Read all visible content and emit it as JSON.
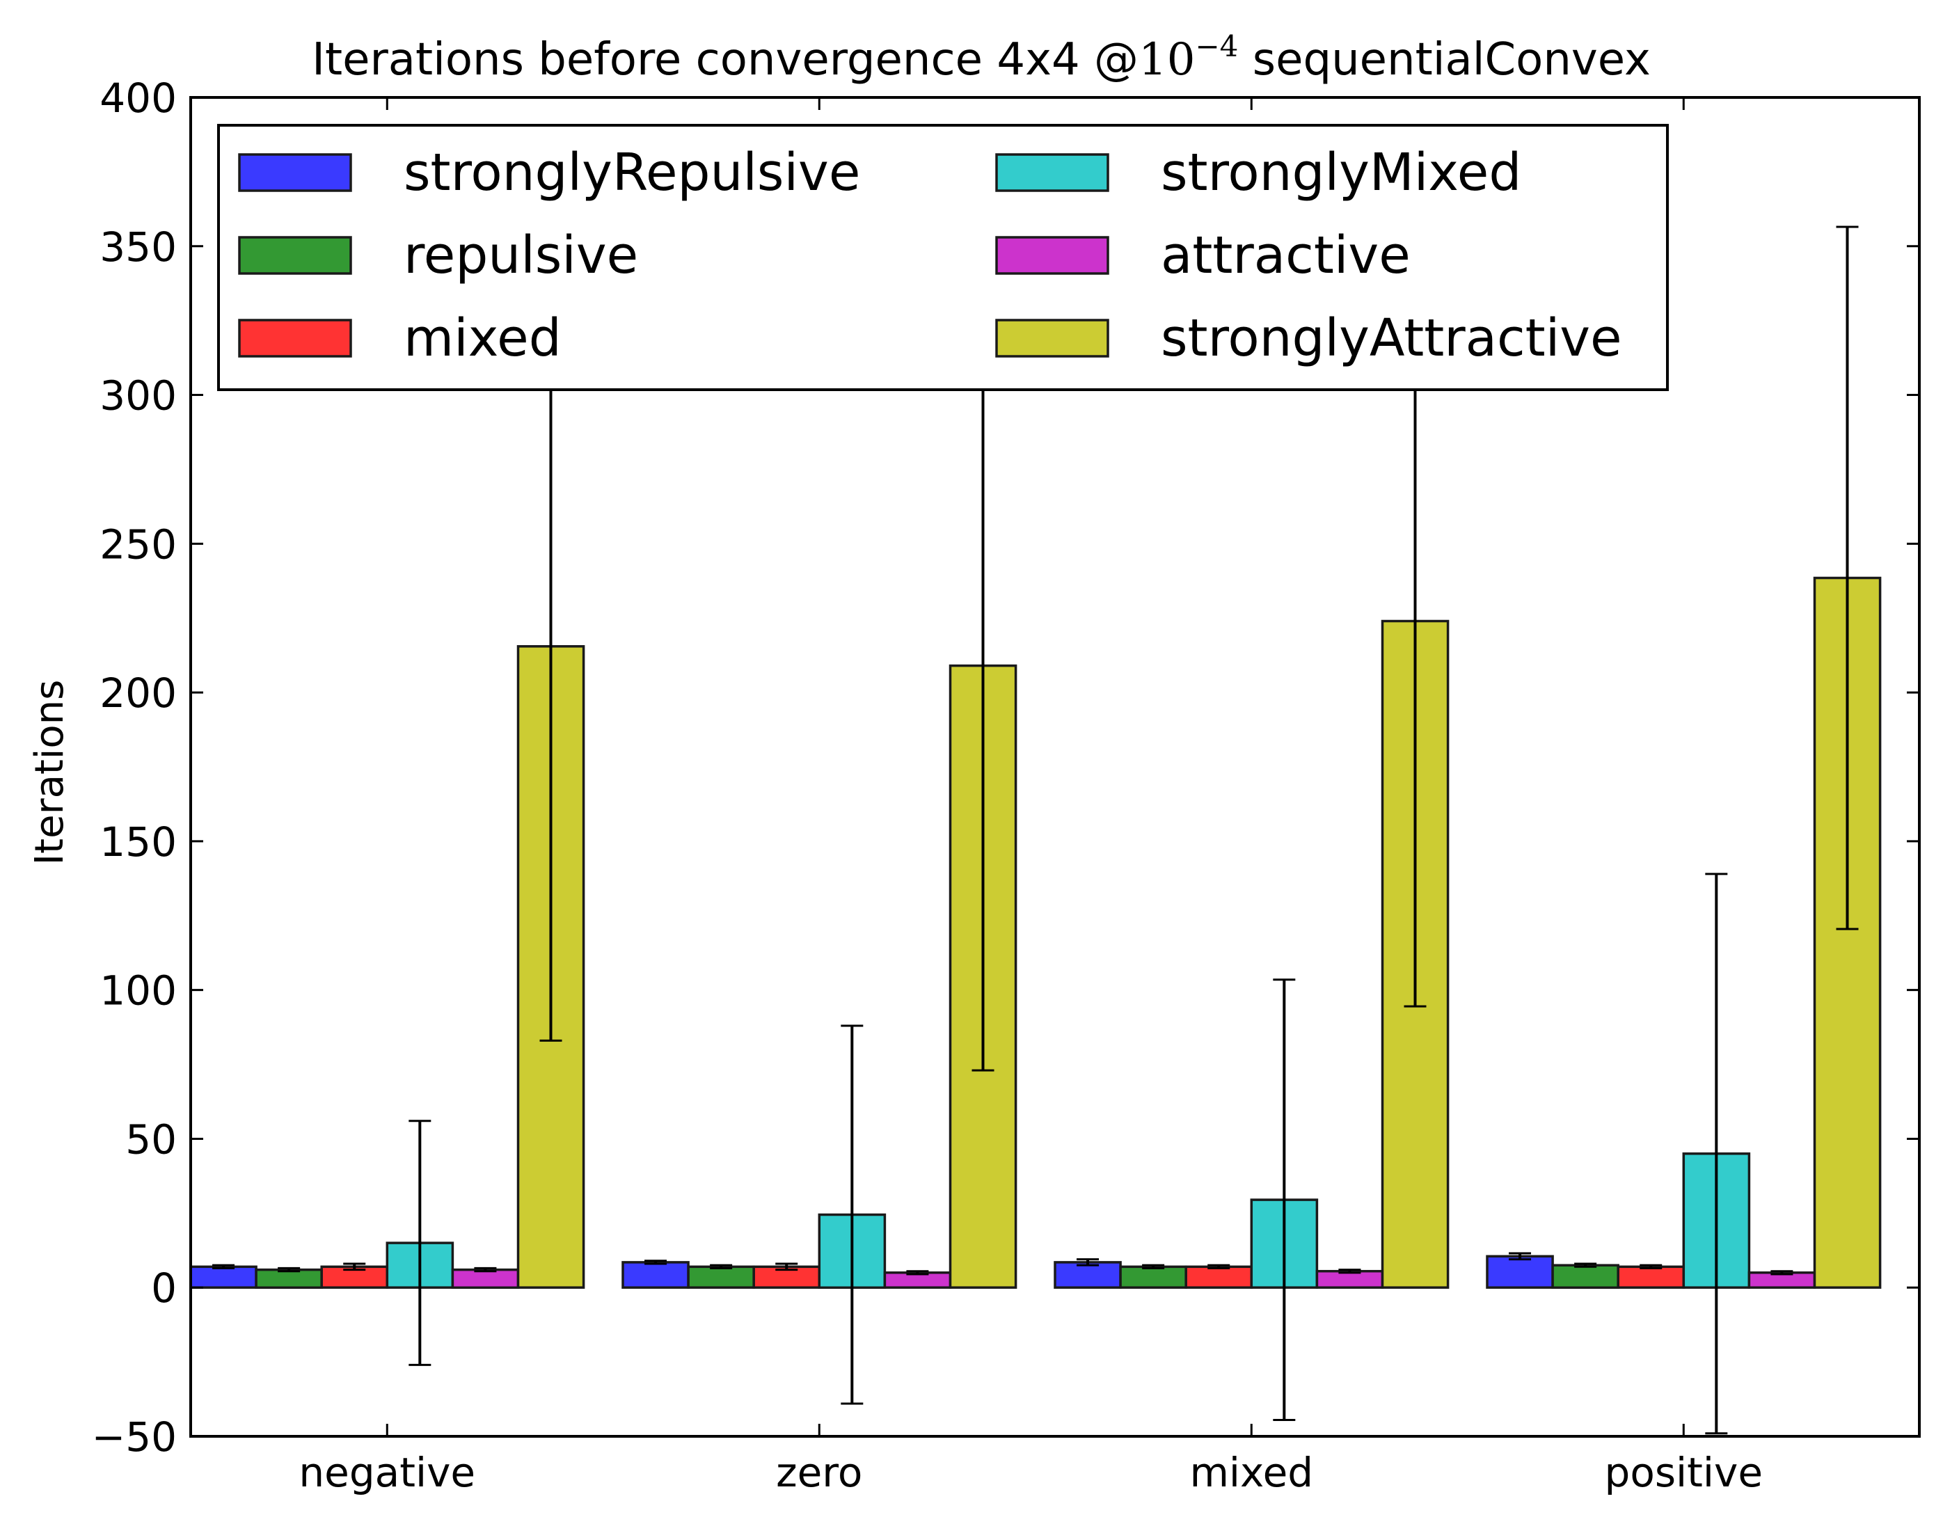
{
  "chart_data": {
    "type": "bar",
    "title": {
      "prefix": "Iterations before convergence 4x4 @",
      "base": "10",
      "exponent": "−4",
      "suffix": " sequentialConvex"
    },
    "xlabel": "",
    "ylabel": "Iterations",
    "ylim": [
      -50,
      400
    ],
    "yticks": [
      -50,
      0,
      50,
      100,
      150,
      200,
      250,
      300,
      350,
      400
    ],
    "categories": [
      "negative",
      "zero",
      "mixed",
      "positive"
    ],
    "series": [
      {
        "name": "stronglyRepulsive",
        "color": "#3a3aff",
        "values": [
          7,
          8.5,
          8.5,
          10.5
        ],
        "errors": [
          0.5,
          0.5,
          1,
          1
        ]
      },
      {
        "name": "repulsive",
        "color": "#339933",
        "values": [
          6,
          7,
          7,
          7.5
        ],
        "errors": [
          0.5,
          0.5,
          0.5,
          0.5
        ]
      },
      {
        "name": "mixed",
        "color": "#ff3333",
        "values": [
          7,
          7,
          7,
          7
        ],
        "errors": [
          1,
          1,
          0.5,
          0.5
        ]
      },
      {
        "name": "stronglyMixed",
        "color": "#33cccc",
        "values": [
          15,
          24.5,
          29.5,
          45
        ],
        "errors": [
          41,
          63.5,
          74,
          94
        ]
      },
      {
        "name": "attractive",
        "color": "#cc33cc",
        "values": [
          6,
          5,
          5.5,
          5
        ],
        "errors": [
          0.5,
          0.5,
          0.5,
          0.5
        ]
      },
      {
        "name": "stronglyAttractive",
        "color": "#cccc33",
        "values": [
          215.5,
          209,
          224,
          238.5
        ],
        "errors": [
          132.5,
          136,
          129.5,
          118
        ]
      }
    ],
    "legend": {
      "placement": "upper-left",
      "columns": 2
    },
    "grid": false
  }
}
